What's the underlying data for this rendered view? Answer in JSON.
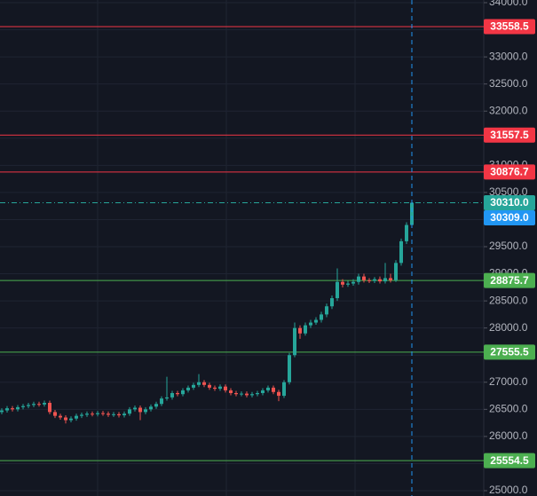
{
  "chart_data": {
    "type": "candlestick",
    "open": [
      26450,
      26480,
      26520,
      26500,
      26540,
      26560,
      26580,
      26600,
      26590,
      26620,
      26450,
      26380,
      26350,
      26300,
      26330,
      26380,
      26400,
      26420,
      26410,
      26430,
      26420,
      26400,
      26410,
      26390,
      26420,
      26500,
      26530,
      26450,
      26500,
      26550,
      26600,
      26700,
      26720,
      26800,
      26780,
      26850,
      26900,
      26950,
      27000,
      26950,
      26900,
      26880,
      26920,
      26850,
      26800,
      26780,
      26790,
      26760,
      26780,
      26800,
      26850,
      26900,
      26820,
      26750,
      27000,
      27500,
      28000,
      27900,
      28050,
      28100,
      28150,
      28250,
      28400,
      28550,
      28850,
      28800,
      28820,
      28850,
      28950,
      28880,
      28870,
      28900,
      28860,
      28920,
      28880,
      29200,
      29600,
      29900
    ],
    "high": [
      26520,
      26560,
      26560,
      26580,
      26600,
      26620,
      26640,
      26640,
      26660,
      26660,
      26490,
      26420,
      26390,
      26370,
      26420,
      26440,
      26460,
      26460,
      26470,
      26470,
      26460,
      26450,
      26450,
      26460,
      26540,
      26570,
      26570,
      26540,
      26590,
      26640,
      26740,
      27100,
      26840,
      26840,
      26890,
      26940,
      26990,
      27150,
      27040,
      26990,
      26940,
      26960,
      26960,
      26890,
      26840,
      26830,
      26830,
      26820,
      26840,
      26890,
      26940,
      26940,
      26860,
      27040,
      27540,
      28100,
      28050,
      28100,
      28150,
      28200,
      28300,
      28450,
      28600,
      29100,
      28900,
      28870,
      28900,
      29000,
      29000,
      28920,
      28940,
      28950,
      29200,
      29000,
      29250,
      29650,
      29950,
      30350
    ],
    "low": [
      26410,
      26440,
      26460,
      26460,
      26500,
      26520,
      26540,
      26550,
      26550,
      26410,
      26340,
      26310,
      26240,
      26260,
      26290,
      26340,
      26360,
      26370,
      26370,
      26380,
      26360,
      26360,
      26350,
      26350,
      26380,
      26460,
      26300,
      26410,
      26460,
      26510,
      26560,
      26660,
      26680,
      26740,
      26740,
      26810,
      26860,
      26910,
      26910,
      26860,
      26840,
      26840,
      26810,
      26760,
      26740,
      26740,
      26720,
      26720,
      26740,
      26760,
      26810,
      26780,
      26650,
      26710,
      26960,
      27460,
      27800,
      27860,
      28000,
      28060,
      28100,
      28200,
      28350,
      28500,
      28750,
      28760,
      28780,
      28800,
      28840,
      28830,
      28830,
      28820,
      28820,
      28840,
      28850,
      29150,
      29550,
      29850
    ],
    "close": [
      26480,
      26520,
      26500,
      26540,
      26560,
      26580,
      26600,
      26590,
      26620,
      26450,
      26380,
      26350,
      26300,
      26330,
      26380,
      26400,
      26420,
      26410,
      26430,
      26420,
      26400,
      26410,
      26390,
      26420,
      26500,
      26530,
      26450,
      26500,
      26550,
      26600,
      26700,
      26720,
      26800,
      26780,
      26850,
      26900,
      26950,
      27000,
      26950,
      26900,
      26880,
      26920,
      26850,
      26800,
      26780,
      26790,
      26760,
      26780,
      26800,
      26850,
      26900,
      26820,
      26750,
      27000,
      27500,
      28000,
      27900,
      28050,
      28100,
      28150,
      28250,
      28400,
      28550,
      28850,
      28800,
      28820,
      28850,
      28950,
      28880,
      28870,
      28900,
      28860,
      28920,
      28880,
      29200,
      29600,
      29900,
      30310
    ],
    "up_color": "#26a69a",
    "down_color": "#ef5350",
    "ylim": [
      25000,
      34000
    ],
    "yticks": [
      {
        "value": 25000,
        "label": "25000.0"
      },
      {
        "value": 25500,
        "label": "25500.0"
      },
      {
        "value": 26000,
        "label": "26000.0"
      },
      {
        "value": 26500,
        "label": "26500.0"
      },
      {
        "value": 27000,
        "label": "27000.0"
      },
      {
        "value": 27500,
        "label": "27500.0"
      },
      {
        "value": 28000,
        "label": "28000.0"
      },
      {
        "value": 28500,
        "label": "28500.0"
      },
      {
        "value": 29000,
        "label": "29000.0"
      },
      {
        "value": 29500,
        "label": "29500.0"
      },
      {
        "value": 30000,
        "label": "30000.0"
      },
      {
        "value": 30500,
        "label": "30500.0"
      },
      {
        "value": 31000,
        "label": "31000.0"
      },
      {
        "value": 31500,
        "label": "31500.0"
      },
      {
        "value": 32000,
        "label": "32000.0"
      },
      {
        "value": 32500,
        "label": "32500.0"
      },
      {
        "value": 33000,
        "label": "33000.0"
      },
      {
        "value": 33500,
        "label": "33500.0"
      },
      {
        "value": 34000,
        "label": "34000.0"
      }
    ],
    "grid": true,
    "price_lines": [
      {
        "value": 33558.5,
        "label": "33558.5",
        "color": "#f23645"
      },
      {
        "value": 31557.5,
        "label": "31557.5",
        "color": "#f23645"
      },
      {
        "value": 30876.7,
        "label": "30876.7",
        "color": "#f23645"
      },
      {
        "value": 28875.7,
        "label": "28875.7",
        "color": "#4caf50"
      },
      {
        "value": 27555.5,
        "label": "27555.5",
        "color": "#4caf50"
      },
      {
        "value": 25554.5,
        "label": "25554.5",
        "color": "#4caf50"
      }
    ],
    "last_price": {
      "value": 30310.0,
      "label": "30310.0",
      "color": "#26a69a"
    },
    "bid_price": {
      "value": 30309.0,
      "label": "30309.0",
      "color": "#2196f3"
    }
  }
}
